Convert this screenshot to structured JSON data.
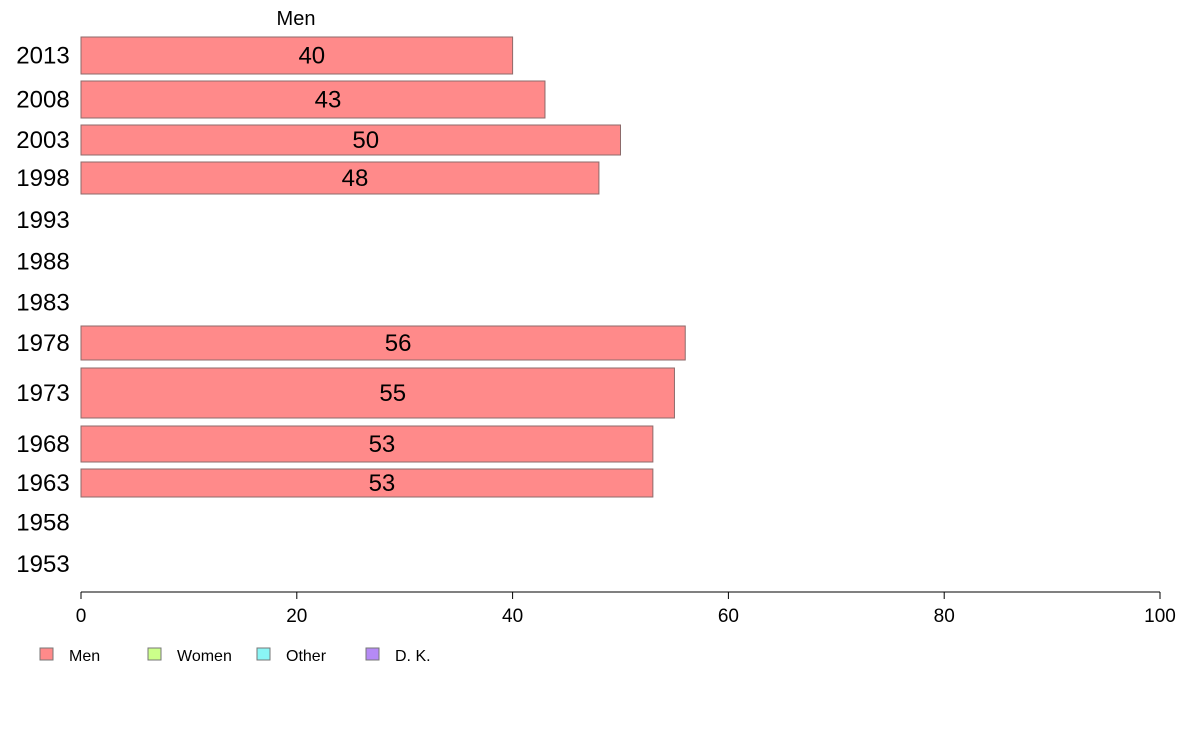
{
  "chart_data": {
    "type": "bar",
    "orientation": "horizontal",
    "series_title": "Men",
    "categories": [
      "2013",
      "2008",
      "2003",
      "1998",
      "1993",
      "1988",
      "1983",
      "1978",
      "1973",
      "1968",
      "1963",
      "1958",
      "1953"
    ],
    "series": [
      {
        "name": "Men",
        "color": "#ff8a8a",
        "values": [
          40,
          43,
          50,
          48,
          null,
          null,
          null,
          56,
          55,
          53,
          53,
          null,
          null
        ],
        "labels": [
          "40",
          "43",
          "50",
          "48",
          "",
          "",
          "",
          "56",
          "55",
          "53",
          "53",
          "",
          ""
        ]
      }
    ],
    "xlim": [
      0,
      100
    ],
    "xticks": [
      "0",
      "20",
      "40",
      "60",
      "80",
      "100"
    ],
    "legend": {
      "position": "bottom-left",
      "items": [
        {
          "label": "Men",
          "color": "#ff8a8a"
        },
        {
          "label": "Women",
          "color": "#ccff8a"
        },
        {
          "label": "Other",
          "color": "#8af5f5"
        },
        {
          "label": "D. K.",
          "color": "#b58af5"
        }
      ]
    }
  }
}
